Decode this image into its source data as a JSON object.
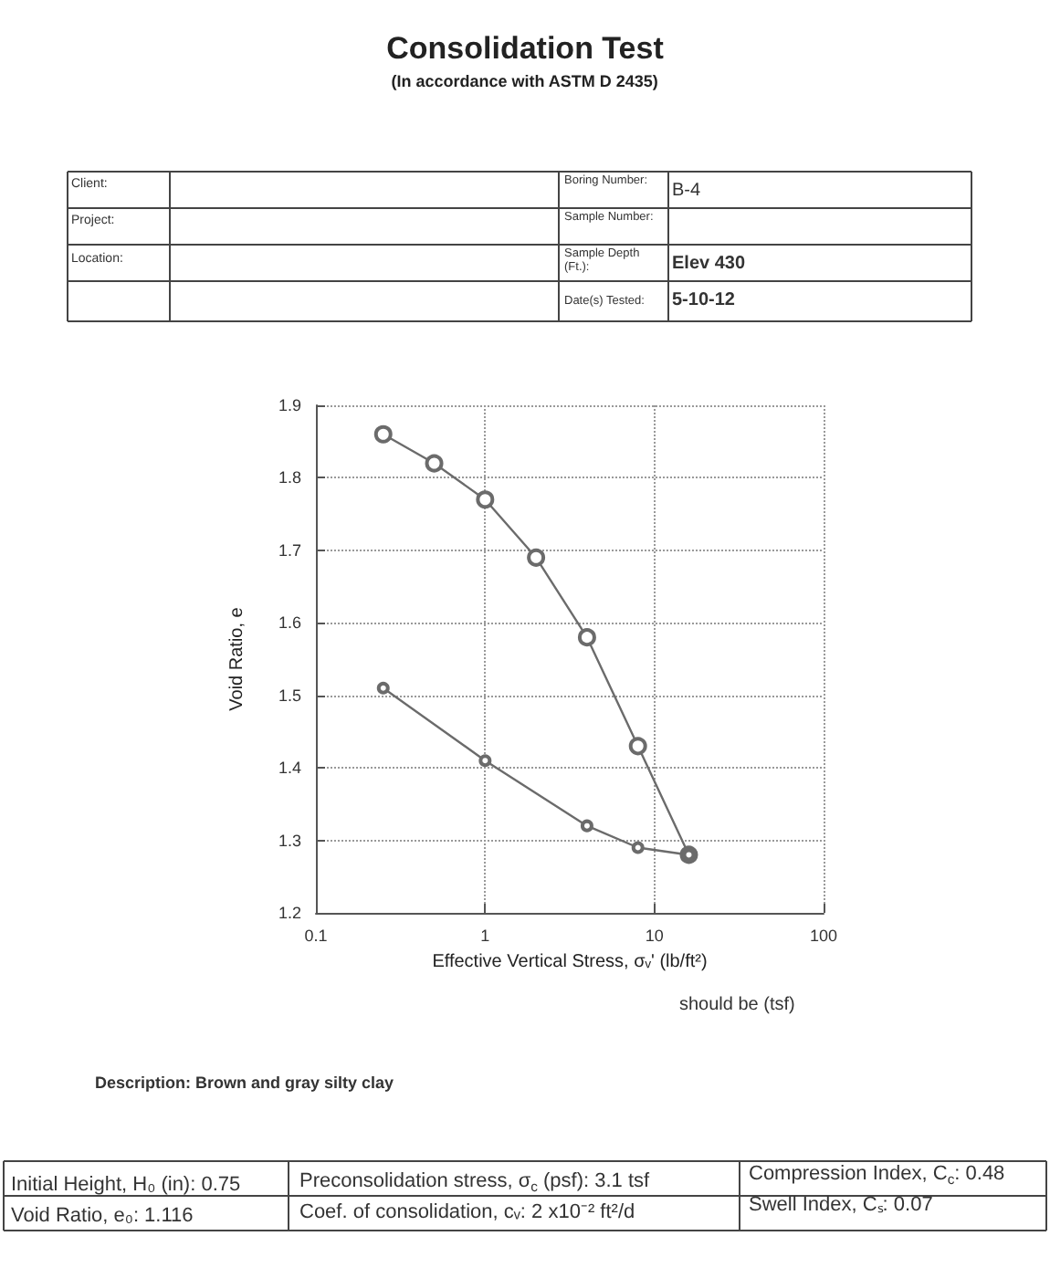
{
  "chart_data": {
    "type": "line",
    "title": "Consolidation Test",
    "subtitle": "(In accordance with ASTM D 2435)",
    "xlabel": "Effective Vertical Stress, σᵥ' (lb/ft²)",
    "ylabel": "Void Ratio, e",
    "log": "x",
    "xlim": [
      0.1,
      100
    ],
    "xticks": [
      0.1,
      1,
      10,
      100
    ],
    "ylim": [
      1.2,
      1.9
    ],
    "yticks": [
      1.2,
      1.3,
      1.4,
      1.5,
      1.6,
      1.7,
      1.8,
      1.9
    ],
    "grid": true,
    "marker": "circle",
    "line_style": "solid",
    "series": [
      {
        "color": "#6b6b6b",
        "x": [
          0.25,
          0.5,
          1,
          2,
          4,
          8,
          16
        ],
        "values": [
          1.86,
          1.82,
          1.77,
          1.69,
          1.58,
          1.43,
          1.28
        ]
      },
      {
        "color": "#6b6b6b",
        "x": [
          16,
          8,
          4,
          1,
          0.25
        ],
        "values": [
          1.28,
          1.29,
          1.32,
          1.41,
          1.51
        ]
      }
    ],
    "annotations": [
      "Client:",
      "Project:",
      "Location:",
      "Boring Number:",
      "B-4",
      "Sample Number:",
      "Sample Depth (Ft.):",
      "Elev 430",
      "Date(s) Tested:",
      "5-10-12",
      "should be (tsf)",
      "Description: Brown and gray silty clay",
      "Initial Height, H₀ (in): 0.75",
      "Void Ratio, e₀: 1.116",
      "Preconsolidation stress, σ$_{c}$ (psf): 3.1 tsf",
      "Coef. of consolidation, cᵥ: 2 x10⁻² ft²/d",
      "Compression Index, C$_{c}$: 0.48",
      "Swell Index, Cₛ: 0.07"
    ]
  }
}
